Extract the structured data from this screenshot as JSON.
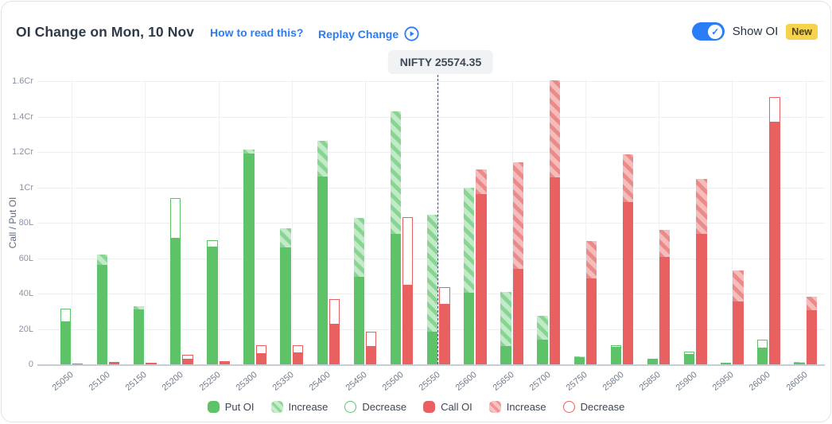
{
  "header": {
    "title": "OI Change on Mon, 10 Nov",
    "how_to_read_label": "How to read this?",
    "replay_label": "Replay Change",
    "show_oi_label": "Show OI",
    "new_badge": "New",
    "show_oi_on": true
  },
  "nifty_marker": {
    "label": "NIFTY 25574.35",
    "value": 25574.35
  },
  "colors": {
    "put_solid": "#5dc268",
    "put_stripe_dark": "#86d592",
    "put_stripe_light": "#c2eac6",
    "call_solid": "#e96060",
    "call_stripe_dark": "#ec8a8a",
    "call_stripe_light": "#f5bcbc",
    "accent_blue": "#2b7cf7",
    "badge_yellow": "#f7d24b"
  },
  "chart_data": {
    "type": "bar",
    "title": "OI Change on Mon, 10 Nov",
    "xlabel": "",
    "ylabel": "Call / Put OI",
    "units": "values in lakh; 1Cr = 100L",
    "grid": true,
    "legend_position": "bottom",
    "legend": [
      "Put OI",
      "Increase",
      "Decrease",
      "Call OI",
      "Increase",
      "Decrease"
    ],
    "y_tick_labels": [
      "0",
      "20L",
      "40L",
      "60L",
      "80L",
      "1Cr",
      "1.2Cr",
      "1.4Cr",
      "1.6Cr"
    ],
    "y_tick_values": [
      0,
      20,
      40,
      60,
      80,
      100,
      120,
      140,
      160
    ],
    "ylim": [
      0,
      160
    ],
    "categories": [
      25050,
      25100,
      25150,
      25200,
      25250,
      25300,
      25350,
      25400,
      25450,
      25500,
      25550,
      25600,
      25650,
      25700,
      25750,
      25800,
      25850,
      25900,
      25950,
      26000,
      26050
    ],
    "series": [
      {
        "name": "Put OI",
        "solid": [
          24,
          56,
          31,
          71,
          66,
          119,
          66,
          106,
          49.5,
          73.5,
          18.5,
          40.5,
          10.5,
          14,
          4,
          9.5,
          2.7,
          5.5,
          1,
          9,
          0.8
        ],
        "total": [
          31.5,
          62,
          33,
          94,
          70,
          121.5,
          77,
          126.5,
          82.5,
          143,
          84.5,
          100,
          41,
          27.5,
          4.7,
          10.8,
          3.3,
          7.2,
          1.2,
          14,
          1.3
        ],
        "change": [
          "decrease",
          "increase",
          "increase",
          "decrease",
          "decrease",
          "increase",
          "increase",
          "increase",
          "increase",
          "increase",
          "increase",
          "increase",
          "increase",
          "increase",
          "increase",
          "decrease",
          "decrease",
          "decrease",
          "none",
          "decrease",
          "increase"
        ]
      },
      {
        "name": "Call OI",
        "solid": [
          0.5,
          1.5,
          0.8,
          2.7,
          2,
          6,
          6.5,
          22.5,
          10,
          44.5,
          33.5,
          96,
          54,
          105.5,
          48.5,
          91.5,
          60.5,
          73.5,
          35.5,
          136.5,
          30.5
        ],
        "total": [
          0.5,
          1.5,
          0.8,
          5.5,
          2,
          11,
          11,
          37,
          18.5,
          83,
          43.5,
          110,
          114,
          160.5,
          69.5,
          118.5,
          76,
          104.5,
          53,
          151,
          38
        ],
        "change": [
          "none",
          "none",
          "none",
          "decrease",
          "none",
          "decrease",
          "decrease",
          "decrease",
          "decrease",
          "decrease",
          "decrease",
          "increase",
          "increase",
          "increase",
          "increase",
          "increase",
          "increase",
          "increase",
          "increase",
          "decrease",
          "increase"
        ]
      }
    ],
    "nifty_value": 25574.35
  }
}
